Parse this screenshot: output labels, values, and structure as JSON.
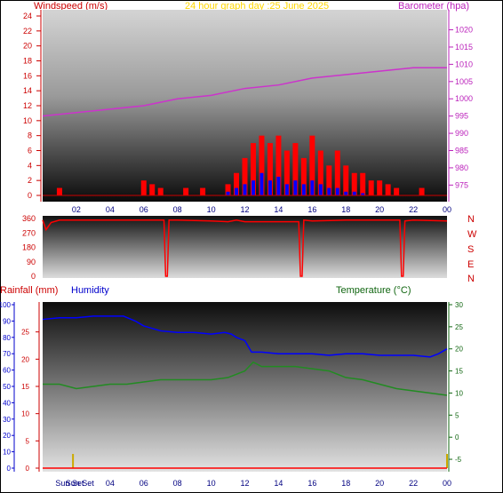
{
  "header": {
    "title": "24 hour graph day :25 June 2025",
    "left_label": "Windspeed (m/s)",
    "right_label": "Barometer (hpa)"
  },
  "direction_labels": [
    "N",
    "W",
    "S",
    "E",
    "N"
  ],
  "lower_header": {
    "rain_label": "Rainfall (mm)",
    "humidity_label": "Humidity",
    "temp_label": "Temperature (°C)"
  },
  "sun_labels": {
    "sunset": "Sun Set",
    "sunrise": "Sun Set"
  },
  "colors": {
    "wind": "#ff0000",
    "gust": "#ff0000",
    "wind_avg": "#0000ff",
    "barometer": "#cc33cc",
    "direction": "#ff0000",
    "humidity": "#0000ff",
    "temperature": "#228b22",
    "rain": "#ff0000",
    "title": "#ffd700",
    "sun_marker": "#ccaa00"
  },
  "chart_data": [
    {
      "type": "line",
      "name": "wind-barometer",
      "x_ticks": [
        "02",
        "04",
        "06",
        "08",
        "10",
        "12",
        "14",
        "16",
        "18",
        "20",
        "22",
        "00"
      ],
      "x_range_hours": [
        0,
        24
      ],
      "left_axis": {
        "label": "Windspeed (m/s)",
        "ticks": [
          0,
          2,
          4,
          6,
          8,
          10,
          12,
          14,
          16,
          18,
          20,
          22,
          24
        ],
        "range": [
          0,
          24
        ]
      },
      "right_axis": {
        "label": "Barometer (hpa)",
        "ticks": [
          975,
          980,
          985,
          990,
          995,
          1000,
          1005,
          1010,
          1015,
          1020
        ],
        "range": [
          972,
          1024
        ]
      },
      "series": [
        {
          "name": "Barometer",
          "axis": "right",
          "x": [
            0,
            2,
            4,
            6,
            8,
            10,
            12,
            14,
            16,
            18,
            20,
            22,
            24
          ],
          "values": [
            995,
            996,
            997,
            998,
            1000,
            1001,
            1003,
            1004,
            1006,
            1007,
            1008,
            1009,
            1009
          ]
        },
        {
          "name": "Gust",
          "axis": "left",
          "x": [
            1,
            6,
            6.5,
            7,
            8.5,
            9.5,
            11,
            11.5,
            12,
            12.5,
            13,
            13.5,
            14,
            14.5,
            15,
            15.5,
            16,
            16.5,
            17,
            17.5,
            18,
            18.5,
            19,
            19.5,
            20,
            20.5,
            21,
            22.5
          ],
          "values": [
            1,
            2,
            1.5,
            1,
            1,
            1,
            1.5,
            3,
            5,
            7,
            8,
            7,
            8,
            6,
            7,
            5,
            8,
            6,
            4,
            6,
            4,
            3,
            3,
            2,
            2,
            1.5,
            1,
            1
          ]
        },
        {
          "name": "Average",
          "axis": "left",
          "x": [
            11,
            11.5,
            12,
            12.5,
            13,
            13.5,
            14,
            14.5,
            15,
            15.5,
            16,
            16.5,
            17,
            17.5,
            18,
            18.5,
            19
          ],
          "values": [
            0.5,
            1,
            1.5,
            2,
            3,
            2,
            2.5,
            1.5,
            2,
            1.5,
            2,
            1.5,
            1,
            1,
            0.5,
            0.5,
            0.3
          ]
        }
      ]
    },
    {
      "type": "line",
      "name": "wind-direction",
      "left_axis": {
        "ticks": [
          0,
          90,
          180,
          270,
          360
        ],
        "range": [
          0,
          360
        ]
      },
      "series": [
        {
          "name": "Direction",
          "x": [
            0,
            0.2,
            0.5,
            1,
            5,
            7.2,
            7.3,
            7.4,
            7.5,
            8,
            10,
            11,
            11.5,
            12,
            15.2,
            15.3,
            15.4,
            15.5,
            16,
            18,
            21.2,
            21.3,
            21.4,
            21.5,
            22,
            24
          ],
          "values": [
            350,
            290,
            335,
            350,
            350,
            350,
            0,
            0,
            350,
            350,
            345,
            340,
            350,
            340,
            340,
            0,
            0,
            350,
            345,
            350,
            350,
            0,
            0,
            345,
            350,
            345
          ]
        }
      ]
    },
    {
      "type": "line",
      "name": "humidity-temperature-rain",
      "x_ticks": [
        "Sun Set",
        "Sun Set",
        "04",
        "06",
        "08",
        "10",
        "12",
        "14",
        "16",
        "18",
        "20",
        "22",
        "00"
      ],
      "left_axis_humidity": {
        "label": "Humidity",
        "ticks": [
          0,
          10,
          20,
          30,
          40,
          50,
          60,
          70,
          80,
          90,
          100
        ],
        "range": [
          0,
          100
        ]
      },
      "left_axis_rain": {
        "label": "Rainfall (mm)",
        "ticks": [
          0,
          5,
          10,
          15,
          20,
          25
        ],
        "range": [
          0,
          30
        ]
      },
      "right_axis": {
        "label": "Temperature (°C)",
        "ticks": [
          -5,
          0,
          5,
          10,
          15,
          20,
          25,
          30
        ],
        "range": [
          -7,
          30
        ]
      },
      "series": [
        {
          "name": "Humidity",
          "axis": "humidity",
          "x": [
            0,
            1,
            2,
            3,
            4,
            4.8,
            5.5,
            6,
            7,
            8,
            9,
            10,
            10.8,
            11.2,
            11.5,
            12,
            12.4,
            13,
            14,
            15,
            16,
            17,
            18,
            19,
            20,
            21,
            22,
            23,
            23.5,
            24
          ],
          "values": [
            91,
            92,
            92,
            93,
            93,
            93,
            90,
            87,
            84,
            83,
            83,
            82,
            83,
            82,
            80,
            78,
            71,
            71,
            70,
            70,
            70,
            69,
            70,
            70,
            69,
            69,
            69,
            68,
            70,
            73
          ]
        },
        {
          "name": "Temperature",
          "axis": "temp",
          "x": [
            0,
            1,
            2,
            3,
            4,
            5,
            6,
            7,
            8,
            9,
            10,
            11,
            12,
            12.5,
            13,
            14,
            15,
            16,
            17,
            18,
            19,
            20,
            21,
            22,
            23,
            24
          ],
          "values": [
            12,
            12,
            11,
            11.5,
            12,
            12,
            12.5,
            13,
            13,
            13,
            13,
            13.5,
            15,
            17,
            16,
            16,
            16,
            15.5,
            15,
            13.5,
            13,
            12,
            11,
            10.5,
            10,
            9.5
          ]
        },
        {
          "name": "Rainfall",
          "axis": "rain",
          "x": [
            0,
            24
          ],
          "values": [
            0,
            0
          ]
        }
      ]
    }
  ]
}
